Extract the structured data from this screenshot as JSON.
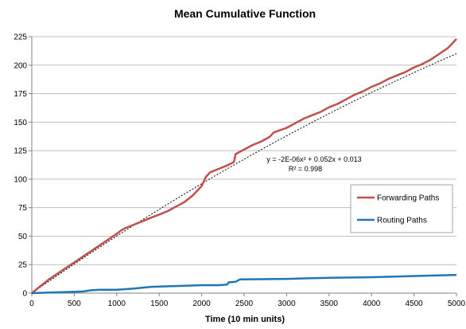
{
  "chart_data": {
    "type": "line",
    "title": "Mean Cumulative Function",
    "xlabel": "Time (10 min units)",
    "ylabel": "",
    "xlim": [
      0,
      5000
    ],
    "ylim": [
      0,
      225
    ],
    "xticks": [
      "0",
      "500",
      "1000",
      "1500",
      "2000",
      "2500",
      "3000",
      "3500",
      "4000",
      "4500",
      "5000"
    ],
    "yticks": [
      "0",
      "25",
      "50",
      "75",
      "100",
      "125",
      "150",
      "175",
      "200",
      "225"
    ],
    "grid": "horizontal",
    "legend_position": "right",
    "series": [
      {
        "name": "Forwarding Paths",
        "color": "#C0504D",
        "x": [
          0,
          100,
          200,
          300,
          400,
          500,
          600,
          700,
          800,
          900,
          1000,
          1050,
          1100,
          1200,
          1300,
          1400,
          1500,
          1600,
          1700,
          1800,
          1900,
          2000,
          2050,
          2100,
          2200,
          2300,
          2380,
          2400,
          2500,
          2600,
          2700,
          2800,
          2850,
          3000,
          3100,
          3200,
          3300,
          3400,
          3500,
          3600,
          3700,
          3800,
          3900,
          4000,
          4100,
          4200,
          4300,
          4400,
          4500,
          4600,
          4700,
          4800,
          4900,
          5000
        ],
        "y": [
          0,
          6,
          12,
          17,
          22,
          27,
          32,
          37,
          42,
          47,
          52,
          55,
          57,
          60,
          63,
          66,
          69,
          72,
          76,
          80,
          86,
          94,
          102,
          106,
          109,
          112,
          115,
          122,
          126,
          130,
          133,
          137,
          141,
          145,
          149,
          153,
          156,
          159,
          163,
          166,
          170,
          174,
          177,
          181,
          184,
          188,
          191,
          194,
          198,
          201,
          205,
          210,
          215,
          223
        ]
      },
      {
        "name": "Routing Paths",
        "color": "#1F77B4",
        "x": [
          0,
          200,
          400,
          600,
          700,
          800,
          1000,
          1200,
          1400,
          1600,
          1800,
          2000,
          2200,
          2300,
          2320,
          2400,
          2450,
          3000,
          3500,
          4000,
          4500,
          5000
        ],
        "y": [
          0,
          0.5,
          1,
          1.5,
          2.5,
          3,
          3,
          4,
          5.5,
          6,
          6.5,
          7,
          7,
          7.5,
          9.5,
          10,
          12,
          12.5,
          13.5,
          14,
          15,
          16
        ]
      }
    ],
    "trendline": {
      "color": "#000000",
      "style": "dotted",
      "coefficients": [
        -2e-06,
        0.052,
        0.013
      ],
      "equation": "y = -2E-06x² + 0.052x + 0.013",
      "r_squared": "R² = 0.998"
    }
  }
}
